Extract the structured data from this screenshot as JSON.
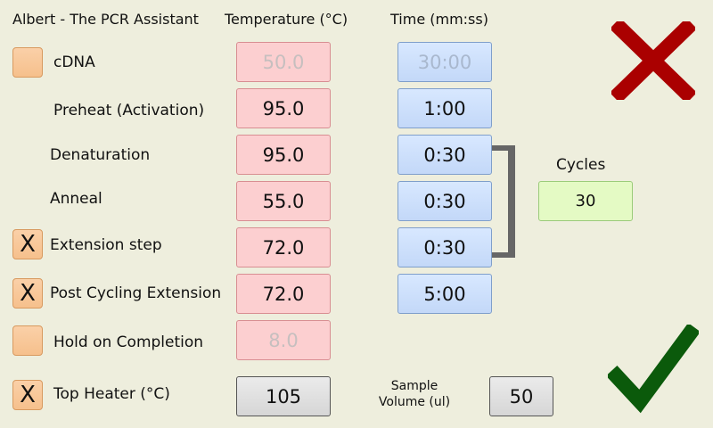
{
  "app_title": "Albert - The PCR Assistant",
  "headers": {
    "temperature": "Temperature (°C)",
    "time": "Time (mm:ss)"
  },
  "rows": {
    "cdna": {
      "label": "cDNA",
      "temperature": "50.0",
      "time": "30:00",
      "checked": false
    },
    "preheat": {
      "label": "Preheat (Activation)",
      "temperature": "95.0",
      "time": "1:00"
    },
    "denaturation": {
      "label": "Denaturation",
      "temperature": "95.0",
      "time": "0:30"
    },
    "anneal": {
      "label": "Anneal",
      "temperature": "55.0",
      "time": "0:30"
    },
    "extension": {
      "label": "Extension step",
      "temperature": "72.0",
      "time": "0:30",
      "checked": true,
      "check_mark": "X"
    },
    "post_extension": {
      "label": "Post Cycling Extension",
      "temperature": "72.0",
      "time": "5:00",
      "checked": true,
      "check_mark": "X"
    },
    "hold": {
      "label": "Hold on Completion",
      "temperature": "8.0",
      "checked": false
    },
    "top_heater": {
      "label": "Top Heater (°C)",
      "value": "105",
      "checked": true,
      "check_mark": "X"
    }
  },
  "cycles": {
    "label": "Cycles",
    "value": "30"
  },
  "sample_volume": {
    "label_line1": "Sample",
    "label_line2": "Volume (ul)",
    "value": "50"
  },
  "icons": {
    "cancel": "close-icon",
    "confirm": "checkmark-icon"
  },
  "colors": {
    "background": "#EEEEDD",
    "temperature_field": "#FCCFD0",
    "time_field": "#C3D8F8",
    "cycles_field": "#E4FAC4",
    "checkbox": "#F6C08C",
    "cancel": "#AA0000",
    "confirm": "#0B5A0B"
  }
}
